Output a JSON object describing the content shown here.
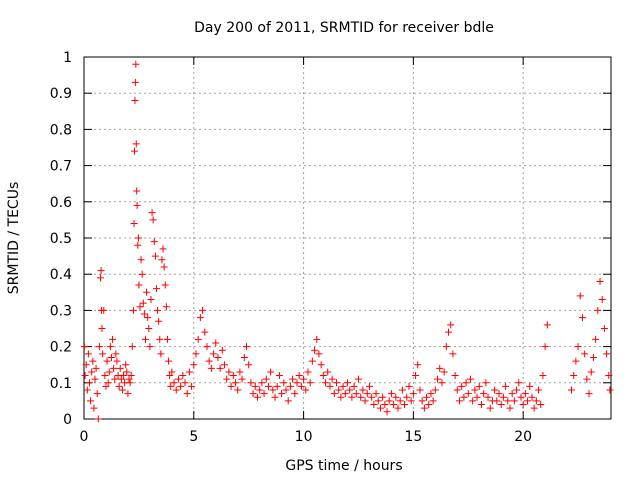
{
  "chart_data": {
    "type": "scatter",
    "title": "Day 200 of 2011, SRMTID for receiver bdle",
    "xlabel": "GPS time / hours",
    "ylabel": "SRMTID / TECUs",
    "xlim": [
      0,
      24
    ],
    "ylim": [
      0,
      1
    ],
    "xticks": [
      0,
      5,
      10,
      15,
      20
    ],
    "xtick_labels": [
      "0",
      "5",
      "10",
      "15",
      "20"
    ],
    "yticks": [
      0,
      0.1,
      0.2,
      0.3,
      0.4,
      0.5,
      0.6,
      0.7,
      0.8,
      0.9,
      1
    ],
    "ytick_labels": [
      "0",
      "0.1",
      "0.2",
      "0.3",
      "0.4",
      "0.5",
      "0.6",
      "0.7",
      "0.8",
      "0.9",
      "1"
    ],
    "grid": true,
    "marker": "+",
    "colors": {
      "series": "#ff0000",
      "grid": "#a0a0a0",
      "axis": "#000000",
      "background": "#ffffff"
    },
    "series": [
      {
        "name": "SRMTID",
        "points": [
          [
            0.02,
            0.2
          ],
          [
            0.05,
            0.12
          ],
          [
            0.1,
            0.15
          ],
          [
            0.15,
            0.08
          ],
          [
            0.2,
            0.18
          ],
          [
            0.25,
            0.1
          ],
          [
            0.3,
            0.05
          ],
          [
            0.35,
            0.13
          ],
          [
            0.4,
            0.16
          ],
          [
            0.45,
            0.03
          ],
          [
            0.5,
            0.11
          ],
          [
            0.55,
            0.14
          ],
          [
            0.6,
            0.07
          ],
          [
            0.65,
            0.0
          ],
          [
            0.7,
            0.2
          ],
          [
            0.75,
            0.39
          ],
          [
            0.78,
            0.41
          ],
          [
            0.8,
            0.3
          ],
          [
            0.82,
            0.25
          ],
          [
            0.85,
            0.18
          ],
          [
            0.9,
            0.3
          ],
          [
            0.95,
            0.12
          ],
          [
            1.0,
            0.09
          ],
          [
            1.05,
            0.16
          ],
          [
            1.1,
            0.1
          ],
          [
            1.15,
            0.13
          ],
          [
            1.2,
            0.2
          ],
          [
            1.25,
            0.17
          ],
          [
            1.3,
            0.22
          ],
          [
            1.35,
            0.14
          ],
          [
            1.4,
            0.11
          ],
          [
            1.45,
            0.18
          ],
          [
            1.5,
            0.16
          ],
          [
            1.55,
            0.12
          ],
          [
            1.6,
            0.09
          ],
          [
            1.65,
            0.14
          ],
          [
            1.7,
            0.11
          ],
          [
            1.75,
            0.08
          ],
          [
            1.8,
            0.12
          ],
          [
            1.85,
            0.1
          ],
          [
            1.9,
            0.15
          ],
          [
            1.95,
            0.13
          ],
          [
            2.0,
            0.07
          ],
          [
            2.05,
            0.11
          ],
          [
            2.1,
            0.1
          ],
          [
            2.15,
            0.12
          ],
          [
            2.2,
            0.2
          ],
          [
            2.25,
            0.3
          ],
          [
            2.28,
            0.54
          ],
          [
            2.3,
            0.74
          ],
          [
            2.32,
            0.88
          ],
          [
            2.34,
            0.93
          ],
          [
            2.36,
            0.98
          ],
          [
            2.38,
            0.76
          ],
          [
            2.4,
            0.63
          ],
          [
            2.42,
            0.59
          ],
          [
            2.45,
            0.48
          ],
          [
            2.48,
            0.5
          ],
          [
            2.5,
            0.37
          ],
          [
            2.55,
            0.31
          ],
          [
            2.6,
            0.44
          ],
          [
            2.65,
            0.4
          ],
          [
            2.7,
            0.32
          ],
          [
            2.75,
            0.29
          ],
          [
            2.8,
            0.22
          ],
          [
            2.85,
            0.35
          ],
          [
            2.9,
            0.28
          ],
          [
            2.95,
            0.25
          ],
          [
            3.0,
            0.2
          ],
          [
            3.05,
            0.33
          ],
          [
            3.1,
            0.57
          ],
          [
            3.15,
            0.55
          ],
          [
            3.2,
            0.49
          ],
          [
            3.25,
            0.45
          ],
          [
            3.3,
            0.36
          ],
          [
            3.35,
            0.3
          ],
          [
            3.4,
            0.27
          ],
          [
            3.45,
            0.22
          ],
          [
            3.5,
            0.18
          ],
          [
            3.55,
            0.44
          ],
          [
            3.6,
            0.47
          ],
          [
            3.65,
            0.42
          ],
          [
            3.7,
            0.37
          ],
          [
            3.75,
            0.31
          ],
          [
            3.8,
            0.22
          ],
          [
            3.85,
            0.16
          ],
          [
            3.9,
            0.12
          ],
          [
            3.95,
            0.09
          ],
          [
            4.0,
            0.13
          ],
          [
            4.1,
            0.1
          ],
          [
            4.2,
            0.08
          ],
          [
            4.3,
            0.11
          ],
          [
            4.4,
            0.09
          ],
          [
            4.5,
            0.12
          ],
          [
            4.6,
            0.1
          ],
          [
            4.7,
            0.07
          ],
          [
            4.8,
            0.13
          ],
          [
            4.9,
            0.09
          ],
          [
            5.0,
            0.15
          ],
          [
            5.1,
            0.18
          ],
          [
            5.2,
            0.22
          ],
          [
            5.3,
            0.28
          ],
          [
            5.4,
            0.3
          ],
          [
            5.5,
            0.24
          ],
          [
            5.6,
            0.2
          ],
          [
            5.7,
            0.16
          ],
          [
            5.8,
            0.14
          ],
          [
            5.9,
            0.18
          ],
          [
            6.0,
            0.21
          ],
          [
            6.1,
            0.17
          ],
          [
            6.2,
            0.14
          ],
          [
            6.3,
            0.19
          ],
          [
            6.4,
            0.15
          ],
          [
            6.5,
            0.11
          ],
          [
            6.6,
            0.13
          ],
          [
            6.7,
            0.09
          ],
          [
            6.8,
            0.12
          ],
          [
            6.9,
            0.1
          ],
          [
            7.0,
            0.08
          ],
          [
            7.1,
            0.13
          ],
          [
            7.2,
            0.11
          ],
          [
            7.3,
            0.17
          ],
          [
            7.4,
            0.2
          ],
          [
            7.5,
            0.15
          ],
          [
            7.6,
            0.1
          ],
          [
            7.7,
            0.07
          ],
          [
            7.8,
            0.09
          ],
          [
            7.9,
            0.06
          ],
          [
            8.0,
            0.08
          ],
          [
            8.1,
            0.1
          ],
          [
            8.2,
            0.07
          ],
          [
            8.3,
            0.11
          ],
          [
            8.4,
            0.09
          ],
          [
            8.5,
            0.13
          ],
          [
            8.6,
            0.08
          ],
          [
            8.7,
            0.06
          ],
          [
            8.8,
            0.09
          ],
          [
            8.9,
            0.12
          ],
          [
            9.0,
            0.07
          ],
          [
            9.1,
            0.1
          ],
          [
            9.2,
            0.08
          ],
          [
            9.3,
            0.05
          ],
          [
            9.4,
            0.09
          ],
          [
            9.5,
            0.11
          ],
          [
            9.6,
            0.07
          ],
          [
            9.7,
            0.1
          ],
          [
            9.8,
            0.12
          ],
          [
            9.9,
            0.09
          ],
          [
            10.0,
            0.11
          ],
          [
            10.1,
            0.08
          ],
          [
            10.2,
            0.13
          ],
          [
            10.3,
            0.1
          ],
          [
            10.4,
            0.16
          ],
          [
            10.5,
            0.19
          ],
          [
            10.6,
            0.22
          ],
          [
            10.7,
            0.18
          ],
          [
            10.8,
            0.15
          ],
          [
            10.9,
            0.12
          ],
          [
            11.0,
            0.1
          ],
          [
            11.1,
            0.13
          ],
          [
            11.2,
            0.09
          ],
          [
            11.3,
            0.11
          ],
          [
            11.4,
            0.07
          ],
          [
            11.5,
            0.1
          ],
          [
            11.6,
            0.08
          ],
          [
            11.7,
            0.06
          ],
          [
            11.8,
            0.09
          ],
          [
            11.9,
            0.07
          ],
          [
            12.0,
            0.1
          ],
          [
            12.1,
            0.08
          ],
          [
            12.2,
            0.06
          ],
          [
            12.3,
            0.09
          ],
          [
            12.4,
            0.07
          ],
          [
            12.5,
            0.11
          ],
          [
            12.6,
            0.06
          ],
          [
            12.7,
            0.08
          ],
          [
            12.8,
            0.05
          ],
          [
            12.9,
            0.07
          ],
          [
            13.0,
            0.09
          ],
          [
            13.1,
            0.06
          ],
          [
            13.2,
            0.04
          ],
          [
            13.3,
            0.07
          ],
          [
            13.4,
            0.05
          ],
          [
            13.5,
            0.03
          ],
          [
            13.6,
            0.06
          ],
          [
            13.7,
            0.04
          ],
          [
            13.8,
            0.02
          ],
          [
            13.9,
            0.05
          ],
          [
            14.0,
            0.07
          ],
          [
            14.1,
            0.04
          ],
          [
            14.2,
            0.06
          ],
          [
            14.3,
            0.03
          ],
          [
            14.4,
            0.05
          ],
          [
            14.5,
            0.08
          ],
          [
            14.6,
            0.04
          ],
          [
            14.7,
            0.06
          ],
          [
            14.8,
            0.09
          ],
          [
            14.9,
            0.05
          ],
          [
            15.0,
            0.07
          ],
          [
            15.1,
            0.12
          ],
          [
            15.2,
            0.15
          ],
          [
            15.3,
            0.08
          ],
          [
            15.4,
            0.05
          ],
          [
            15.5,
            0.03
          ],
          [
            15.6,
            0.06
          ],
          [
            15.7,
            0.04
          ],
          [
            15.8,
            0.07
          ],
          [
            15.9,
            0.05
          ],
          [
            16.0,
            0.08
          ],
          [
            16.1,
            0.11
          ],
          [
            16.2,
            0.14
          ],
          [
            16.3,
            0.1
          ],
          [
            16.4,
            0.13
          ],
          [
            16.5,
            0.2
          ],
          [
            16.6,
            0.24
          ],
          [
            16.7,
            0.26
          ],
          [
            16.8,
            0.18
          ],
          [
            16.9,
            0.12
          ],
          [
            17.0,
            0.08
          ],
          [
            17.1,
            0.05
          ],
          [
            17.2,
            0.09
          ],
          [
            17.3,
            0.06
          ],
          [
            17.4,
            0.1
          ],
          [
            17.5,
            0.07
          ],
          [
            17.6,
            0.11
          ],
          [
            17.7,
            0.05
          ],
          [
            17.8,
            0.08
          ],
          [
            17.9,
            0.06
          ],
          [
            18.0,
            0.09
          ],
          [
            18.1,
            0.04
          ],
          [
            18.2,
            0.07
          ],
          [
            18.3,
            0.1
          ],
          [
            18.4,
            0.06
          ],
          [
            18.5,
            0.03
          ],
          [
            18.6,
            0.05
          ],
          [
            18.7,
            0.08
          ],
          [
            18.8,
            0.05
          ],
          [
            18.9,
            0.07
          ],
          [
            19.0,
            0.04
          ],
          [
            19.1,
            0.06
          ],
          [
            19.2,
            0.09
          ],
          [
            19.3,
            0.05
          ],
          [
            19.4,
            0.03
          ],
          [
            19.5,
            0.07
          ],
          [
            19.6,
            0.05
          ],
          [
            19.7,
            0.08
          ],
          [
            19.8,
            0.1
          ],
          [
            19.9,
            0.06
          ],
          [
            20.0,
            0.04
          ],
          [
            20.1,
            0.07
          ],
          [
            20.2,
            0.05
          ],
          [
            20.3,
            0.09
          ],
          [
            20.4,
            0.06
          ],
          [
            20.5,
            0.03
          ],
          [
            20.6,
            0.05
          ],
          [
            20.7,
            0.08
          ],
          [
            20.8,
            0.04
          ],
          [
            20.9,
            0.12
          ],
          [
            21.0,
            0.2
          ],
          [
            21.1,
            0.26
          ],
          [
            22.2,
            0.08
          ],
          [
            22.3,
            0.12
          ],
          [
            22.4,
            0.16
          ],
          [
            22.5,
            0.2
          ],
          [
            22.6,
            0.34
          ],
          [
            22.7,
            0.28
          ],
          [
            22.8,
            0.18
          ],
          [
            22.9,
            0.11
          ],
          [
            23.0,
            0.07
          ],
          [
            23.1,
            0.13
          ],
          [
            23.2,
            0.17
          ],
          [
            23.3,
            0.22
          ],
          [
            23.4,
            0.3
          ],
          [
            23.5,
            0.38
          ],
          [
            23.6,
            0.33
          ],
          [
            23.7,
            0.25
          ],
          [
            23.8,
            0.18
          ],
          [
            23.9,
            0.12
          ],
          [
            23.95,
            0.08
          ]
        ]
      }
    ]
  }
}
